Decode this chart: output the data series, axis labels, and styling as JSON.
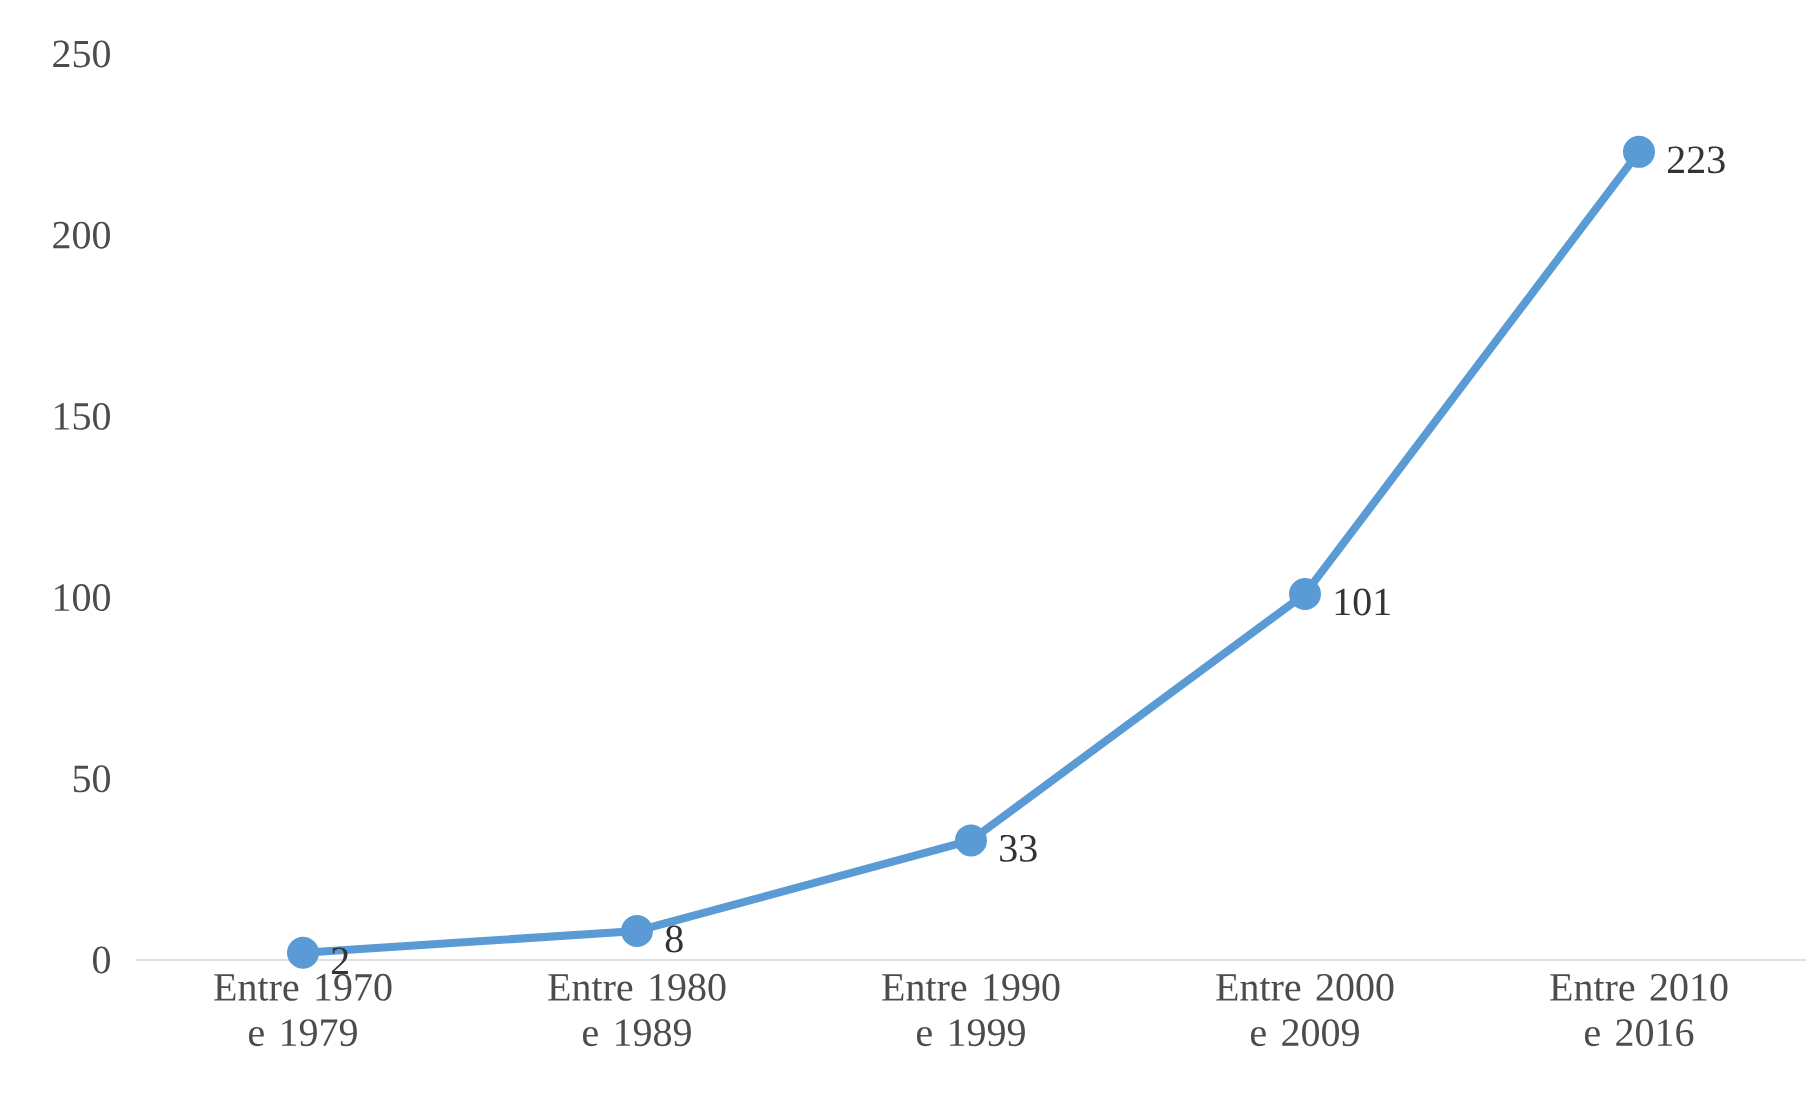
{
  "chart_data": {
    "type": "line",
    "categories": [
      "Entre 1970 e 1979",
      "Entre 1980 e 1989",
      "Entre 1990 e 1999",
      "Entre 2000 e 2009",
      "Entre 2010 e 2016"
    ],
    "values": [
      2,
      8,
      33,
      101,
      223
    ],
    "color": "#5b9bd5",
    "marker": "circle",
    "line_style": "solid",
    "data_labels": true,
    "ylim": [
      0,
      250
    ],
    "yticks": [
      0,
      50,
      100,
      150,
      200,
      250
    ]
  }
}
